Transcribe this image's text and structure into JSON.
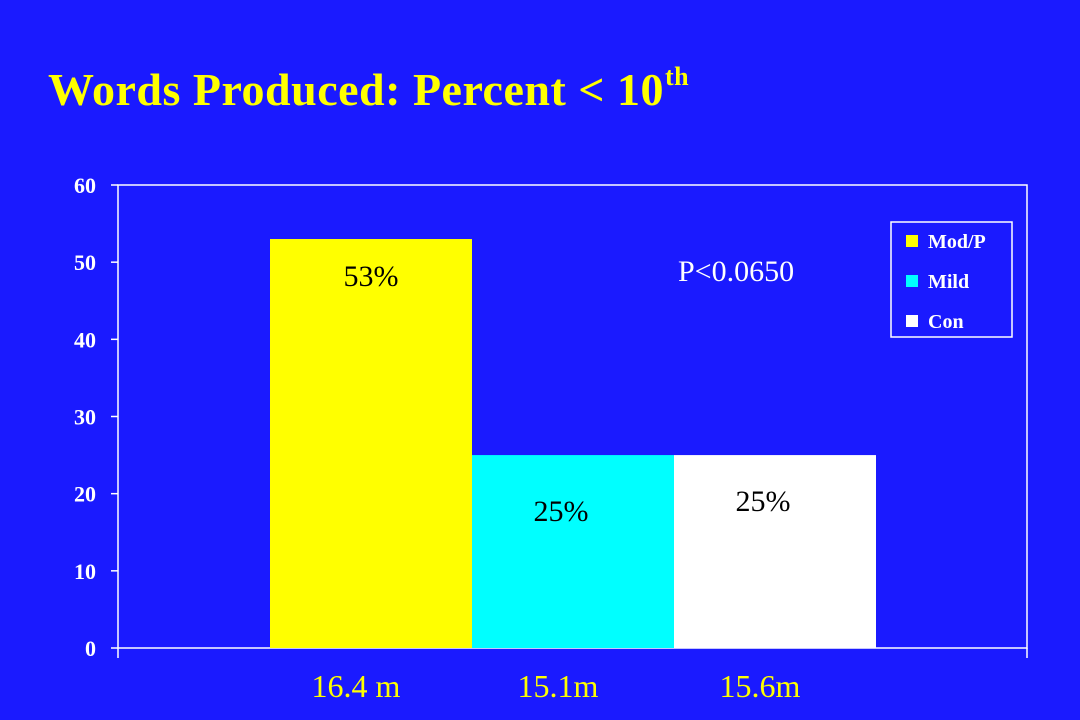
{
  "slide": {
    "title": "Words Produced: Percent < 10",
    "title_superscript": "th"
  },
  "colors": {
    "background": "#1a1aff",
    "title": "#ffff00",
    "text": "#ffffff"
  },
  "chart_data": {
    "type": "bar",
    "ylim": [
      0,
      60
    ],
    "yticks": [
      0,
      10,
      20,
      30,
      40,
      50,
      60
    ],
    "grid": false,
    "legend_position": "top-right",
    "annotation": "P<0.0650",
    "series": [
      {
        "name": "Mod/P",
        "value": 53,
        "data_label": "53%",
        "x_label": "16.4 m",
        "color": "#ffff00"
      },
      {
        "name": "Mild",
        "value": 25,
        "data_label": "25%",
        "x_label": "15.1m",
        "color": "#00ffff"
      },
      {
        "name": "Con",
        "value": 25,
        "data_label": "25%",
        "x_label": "15.6m",
        "color": "#ffffff"
      }
    ]
  }
}
